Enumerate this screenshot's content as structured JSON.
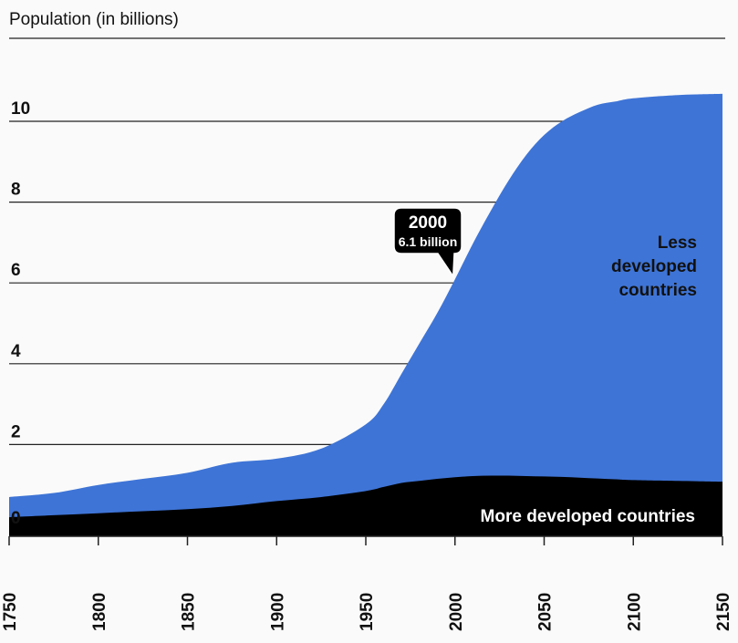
{
  "chart_data": {
    "type": "area",
    "ylabel": "Population (in billions)",
    "ylim": [
      0,
      12
    ],
    "yticks": [
      0,
      2,
      4,
      6,
      8,
      10
    ],
    "xlim": [
      1750,
      2150
    ],
    "xticks": [
      1750,
      1800,
      1850,
      1900,
      1950,
      2000,
      2050,
      2100,
      2150
    ],
    "grid": true,
    "x": [
      1750,
      1775,
      1800,
      1825,
      1850,
      1875,
      1900,
      1925,
      1950,
      1960,
      1970,
      1980,
      1990,
      2000,
      2010,
      2020,
      2030,
      2040,
      2050,
      2060,
      2070,
      2080,
      2090,
      2100,
      2125,
      2150
    ],
    "series": [
      {
        "name": "More developed countries",
        "color": "#000000",
        "values": [
          0.2,
          0.25,
          0.3,
          0.35,
          0.4,
          0.48,
          0.6,
          0.7,
          0.85,
          0.95,
          1.05,
          1.1,
          1.15,
          1.19,
          1.22,
          1.23,
          1.23,
          1.22,
          1.21,
          1.2,
          1.18,
          1.16,
          1.14,
          1.12,
          1.1,
          1.08
        ]
      },
      {
        "name": "Less developed countries",
        "color": "#3e74d6",
        "values": [
          0.5,
          0.55,
          0.7,
          0.8,
          0.9,
          1.07,
          1.05,
          1.2,
          1.65,
          2.05,
          2.7,
          3.4,
          4.1,
          4.9,
          5.75,
          6.55,
          7.3,
          7.95,
          8.45,
          8.8,
          9.05,
          9.25,
          9.35,
          9.45,
          9.55,
          9.6
        ]
      }
    ],
    "annotation": {
      "year": "2000",
      "value": "6.1 billion",
      "x": 2000,
      "y": 6.1
    },
    "labels": {
      "less_developed": [
        "Less",
        "developed",
        "countries"
      ],
      "more_developed": "More developed countries"
    }
  }
}
